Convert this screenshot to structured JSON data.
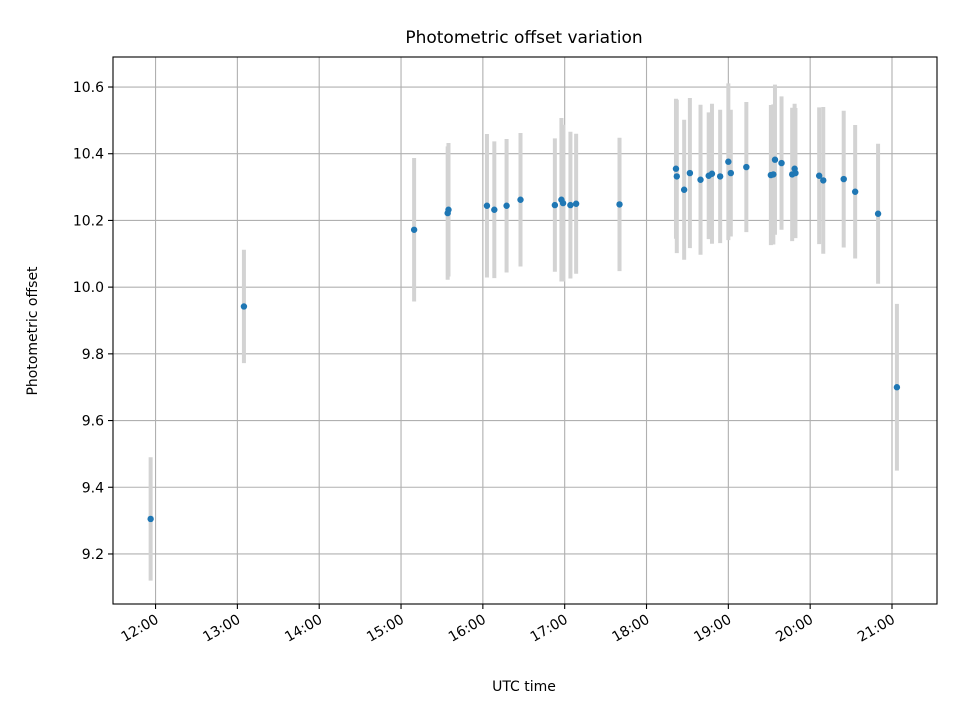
{
  "chart_data": {
    "type": "scatter",
    "title": "Photometric offset variation",
    "xlabel": "UTC time",
    "ylabel": "Photometric offset",
    "grid": true,
    "legend": "none",
    "colors": {
      "marker": "#1f77b4",
      "errorbar": "#d3d3d3",
      "grid": "#b0b0b0"
    },
    "x_unit": "hours UTC",
    "xlim": [
      11.48,
      21.55
    ],
    "ylim": [
      9.05,
      10.69
    ],
    "x_ticks": [
      {
        "value": 12,
        "label": "12:00"
      },
      {
        "value": 13,
        "label": "13:00"
      },
      {
        "value": 14,
        "label": "14:00"
      },
      {
        "value": 15,
        "label": "15:00"
      },
      {
        "value": 16,
        "label": "16:00"
      },
      {
        "value": 17,
        "label": "17:00"
      },
      {
        "value": 18,
        "label": "18:00"
      },
      {
        "value": 19,
        "label": "19:00"
      },
      {
        "value": 20,
        "label": "20:00"
      },
      {
        "value": 21,
        "label": "21:00"
      }
    ],
    "y_ticks": [
      {
        "value": 9.2,
        "label": "9.2"
      },
      {
        "value": 9.4,
        "label": "9.4"
      },
      {
        "value": 9.6,
        "label": "9.6"
      },
      {
        "value": 9.8,
        "label": "9.8"
      },
      {
        "value": 10.0,
        "label": "10.0"
      },
      {
        "value": 10.2,
        "label": "10.2"
      },
      {
        "value": 10.4,
        "label": "10.4"
      },
      {
        "value": 10.6,
        "label": "10.6"
      }
    ],
    "points": [
      {
        "x": 11.94,
        "y": 9.305,
        "err": 0.185
      },
      {
        "x": 13.08,
        "y": 9.942,
        "err": 0.17
      },
      {
        "x": 15.16,
        "y": 10.172,
        "err": 0.215
      },
      {
        "x": 15.57,
        "y": 10.222,
        "err": 0.2
      },
      {
        "x": 15.58,
        "y": 10.232,
        "err": 0.2
      },
      {
        "x": 16.05,
        "y": 10.244,
        "err": 0.215
      },
      {
        "x": 16.14,
        "y": 10.232,
        "err": 0.205
      },
      {
        "x": 16.29,
        "y": 10.244,
        "err": 0.2
      },
      {
        "x": 16.46,
        "y": 10.262,
        "err": 0.2
      },
      {
        "x": 16.88,
        "y": 10.246,
        "err": 0.2
      },
      {
        "x": 16.96,
        "y": 10.262,
        "err": 0.245
      },
      {
        "x": 16.98,
        "y": 10.252,
        "err": 0.235
      },
      {
        "x": 17.07,
        "y": 10.246,
        "err": 0.22
      },
      {
        "x": 17.14,
        "y": 10.25,
        "err": 0.21
      },
      {
        "x": 17.67,
        "y": 10.248,
        "err": 0.2
      },
      {
        "x": 18.36,
        "y": 10.355,
        "err": 0.21
      },
      {
        "x": 18.37,
        "y": 10.332,
        "err": 0.23
      },
      {
        "x": 18.46,
        "y": 10.292,
        "err": 0.21
      },
      {
        "x": 18.53,
        "y": 10.342,
        "err": 0.225
      },
      {
        "x": 18.66,
        "y": 10.322,
        "err": 0.225
      },
      {
        "x": 18.76,
        "y": 10.334,
        "err": 0.19
      },
      {
        "x": 18.8,
        "y": 10.34,
        "err": 0.21
      },
      {
        "x": 18.9,
        "y": 10.332,
        "err": 0.2
      },
      {
        "x": 19.0,
        "y": 10.376,
        "err": 0.235
      },
      {
        "x": 19.03,
        "y": 10.342,
        "err": 0.19
      },
      {
        "x": 19.22,
        "y": 10.36,
        "err": 0.195
      },
      {
        "x": 19.52,
        "y": 10.336,
        "err": 0.21
      },
      {
        "x": 19.55,
        "y": 10.338,
        "err": 0.21
      },
      {
        "x": 19.57,
        "y": 10.382,
        "err": 0.225
      },
      {
        "x": 19.65,
        "y": 10.372,
        "err": 0.2
      },
      {
        "x": 19.78,
        "y": 10.338,
        "err": 0.2
      },
      {
        "x": 19.81,
        "y": 10.355,
        "err": 0.195
      },
      {
        "x": 19.82,
        "y": 10.342,
        "err": 0.195
      },
      {
        "x": 20.11,
        "y": 10.334,
        "err": 0.205
      },
      {
        "x": 20.16,
        "y": 10.32,
        "err": 0.22
      },
      {
        "x": 20.41,
        "y": 10.324,
        "err": 0.205
      },
      {
        "x": 20.55,
        "y": 10.286,
        "err": 0.2
      },
      {
        "x": 20.83,
        "y": 10.22,
        "err": 0.21
      },
      {
        "x": 21.06,
        "y": 9.7,
        "err": 0.25
      }
    ]
  }
}
